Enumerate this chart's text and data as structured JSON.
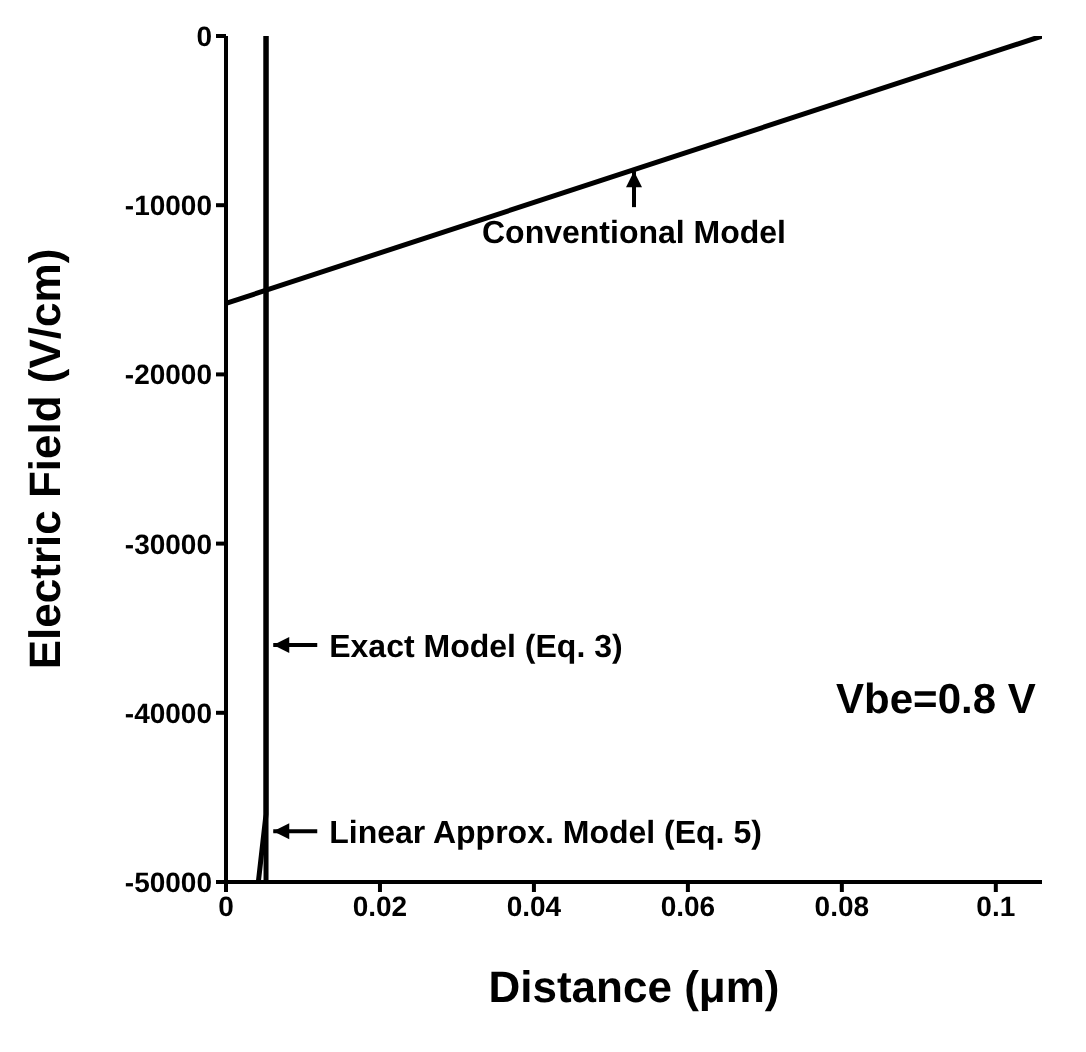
{
  "chart_data": {
    "type": "line",
    "xlabel": "Distance (μm)",
    "ylabel": "Electric Field (V/cm)",
    "xlim": [
      0,
      0.106
    ],
    "ylim": [
      -50000,
      0
    ],
    "xticks": [
      0,
      0.02,
      0.04,
      0.06,
      0.08,
      {
        "value": 0.1,
        "label": "0.1"
      }
    ],
    "yticks": [
      -50000,
      -40000,
      -30000,
      -20000,
      -10000,
      0
    ],
    "marker": "none",
    "line_style": "solid",
    "series": [
      {
        "color": "#000000",
        "x": [
          0,
          0.106
        ],
        "values": [
          -15800,
          0
        ]
      },
      {
        "color": "#000000",
        "x": [
          0.0052,
          0.0052
        ],
        "values": [
          -50000,
          0
        ]
      },
      {
        "color": "#000000",
        "x": [
          0.0042,
          0.0052,
          0.0052
        ],
        "values": [
          -50000,
          -46000,
          0
        ]
      }
    ],
    "annotations": [
      "Conventional Model",
      "Exact Model (Eq. 3)",
      "Linear Approx. Model (Eq. 5)",
      "Vbe=0.8 V"
    ]
  }
}
